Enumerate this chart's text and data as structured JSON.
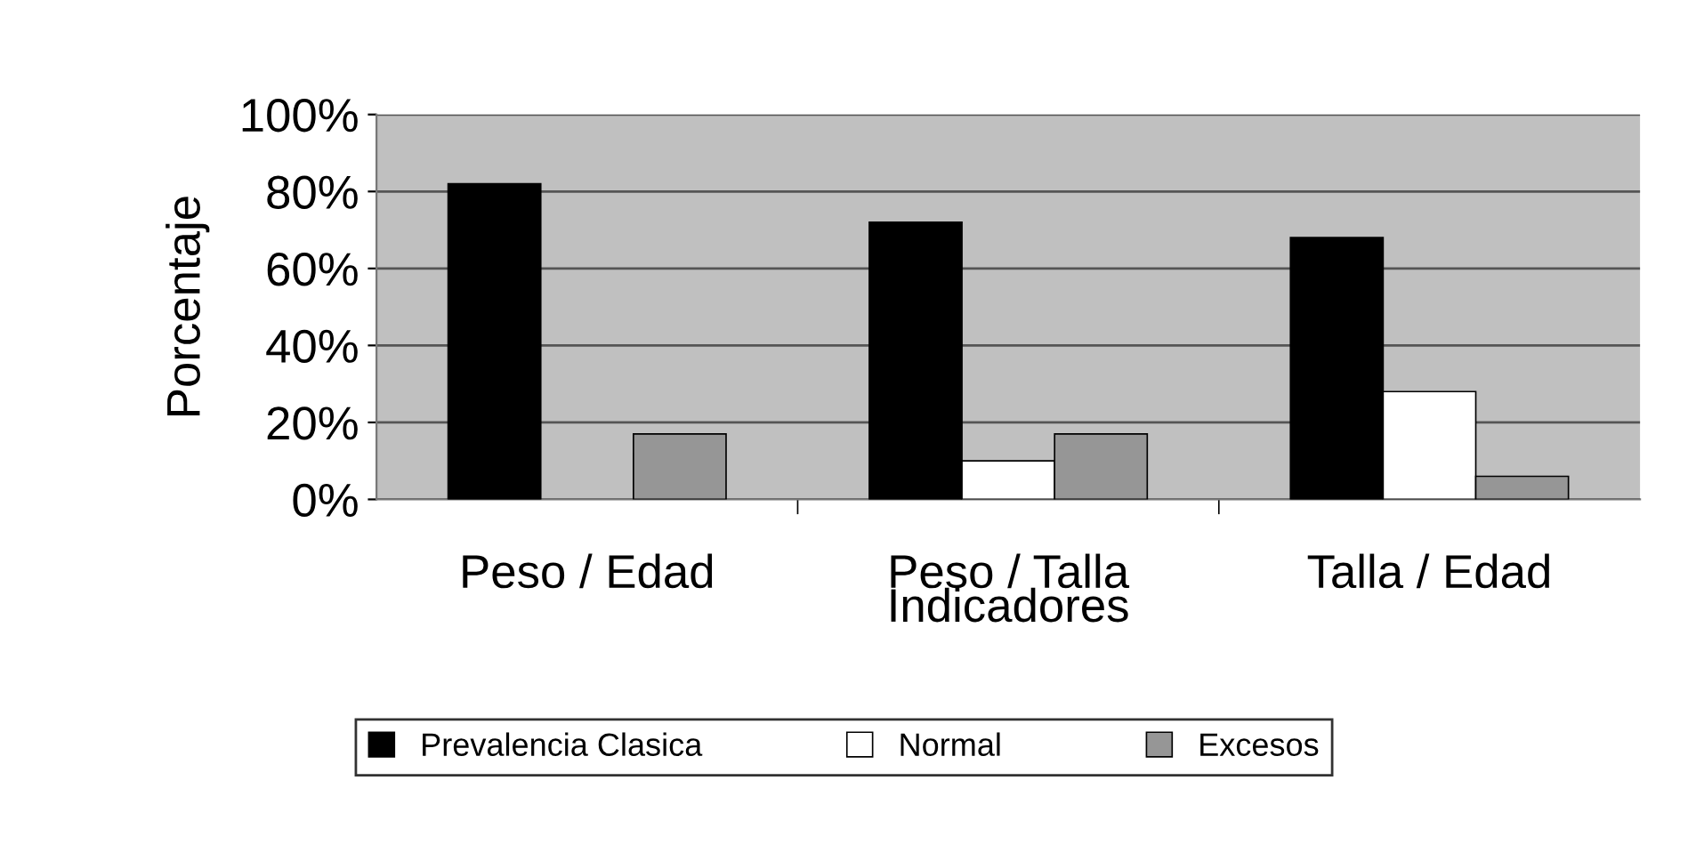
{
  "chart_data": {
    "type": "bar",
    "ylabel": "Porcentaje",
    "xlabel": "Indicadores",
    "categories": [
      "Peso / Edad",
      "Peso / Talla",
      "Talla / Edad"
    ],
    "series": [
      {
        "name": "Prevalencia Clasica",
        "color": "#000000",
        "values": [
          82,
          72,
          68
        ]
      },
      {
        "name": "Normal",
        "color": "#ffffff",
        "values": [
          null,
          10,
          28
        ]
      },
      {
        "name": "Excesos",
        "color": "#969696",
        "values": [
          17,
          17,
          6
        ]
      }
    ],
    "ylim": [
      0,
      100
    ],
    "yticks": [
      {
        "value": 0,
        "label": "0%"
      },
      {
        "value": 20,
        "label": "20%"
      },
      {
        "value": 40,
        "label": "40%"
      },
      {
        "value": 60,
        "label": "60%"
      },
      {
        "value": 80,
        "label": "80%"
      },
      {
        "value": 100,
        "label": "100%"
      }
    ],
    "grid": "y",
    "legend": "bottom"
  }
}
